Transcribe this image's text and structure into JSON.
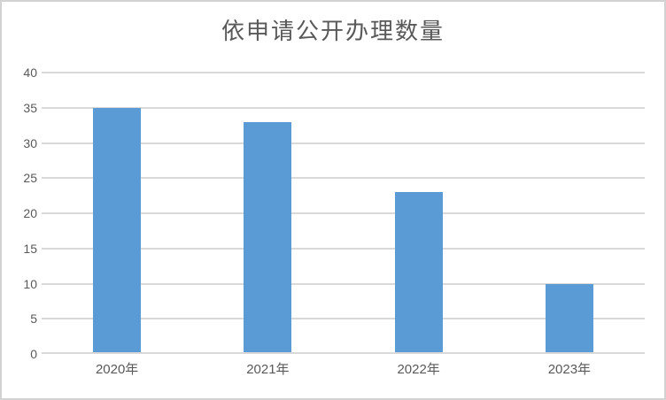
{
  "chart_data": {
    "type": "bar",
    "title": "依申请公开办理数量",
    "categories": [
      "2020年",
      "2021年",
      "2022年",
      "2023年"
    ],
    "values": [
      35,
      33,
      23,
      10
    ],
    "yticks": [
      0,
      5,
      10,
      15,
      20,
      25,
      30,
      35,
      40
    ],
    "ylim": [
      0,
      40
    ],
    "xlabel": "",
    "ylabel": "",
    "grid": true,
    "legend": "none",
    "colors": {
      "bar": "#5B9BD5",
      "gridline": "#D9D9D9",
      "axis_text": "#595959",
      "title_text": "#595959",
      "background": "#FFFFFF",
      "frame_border": "#D2D2D2"
    }
  }
}
